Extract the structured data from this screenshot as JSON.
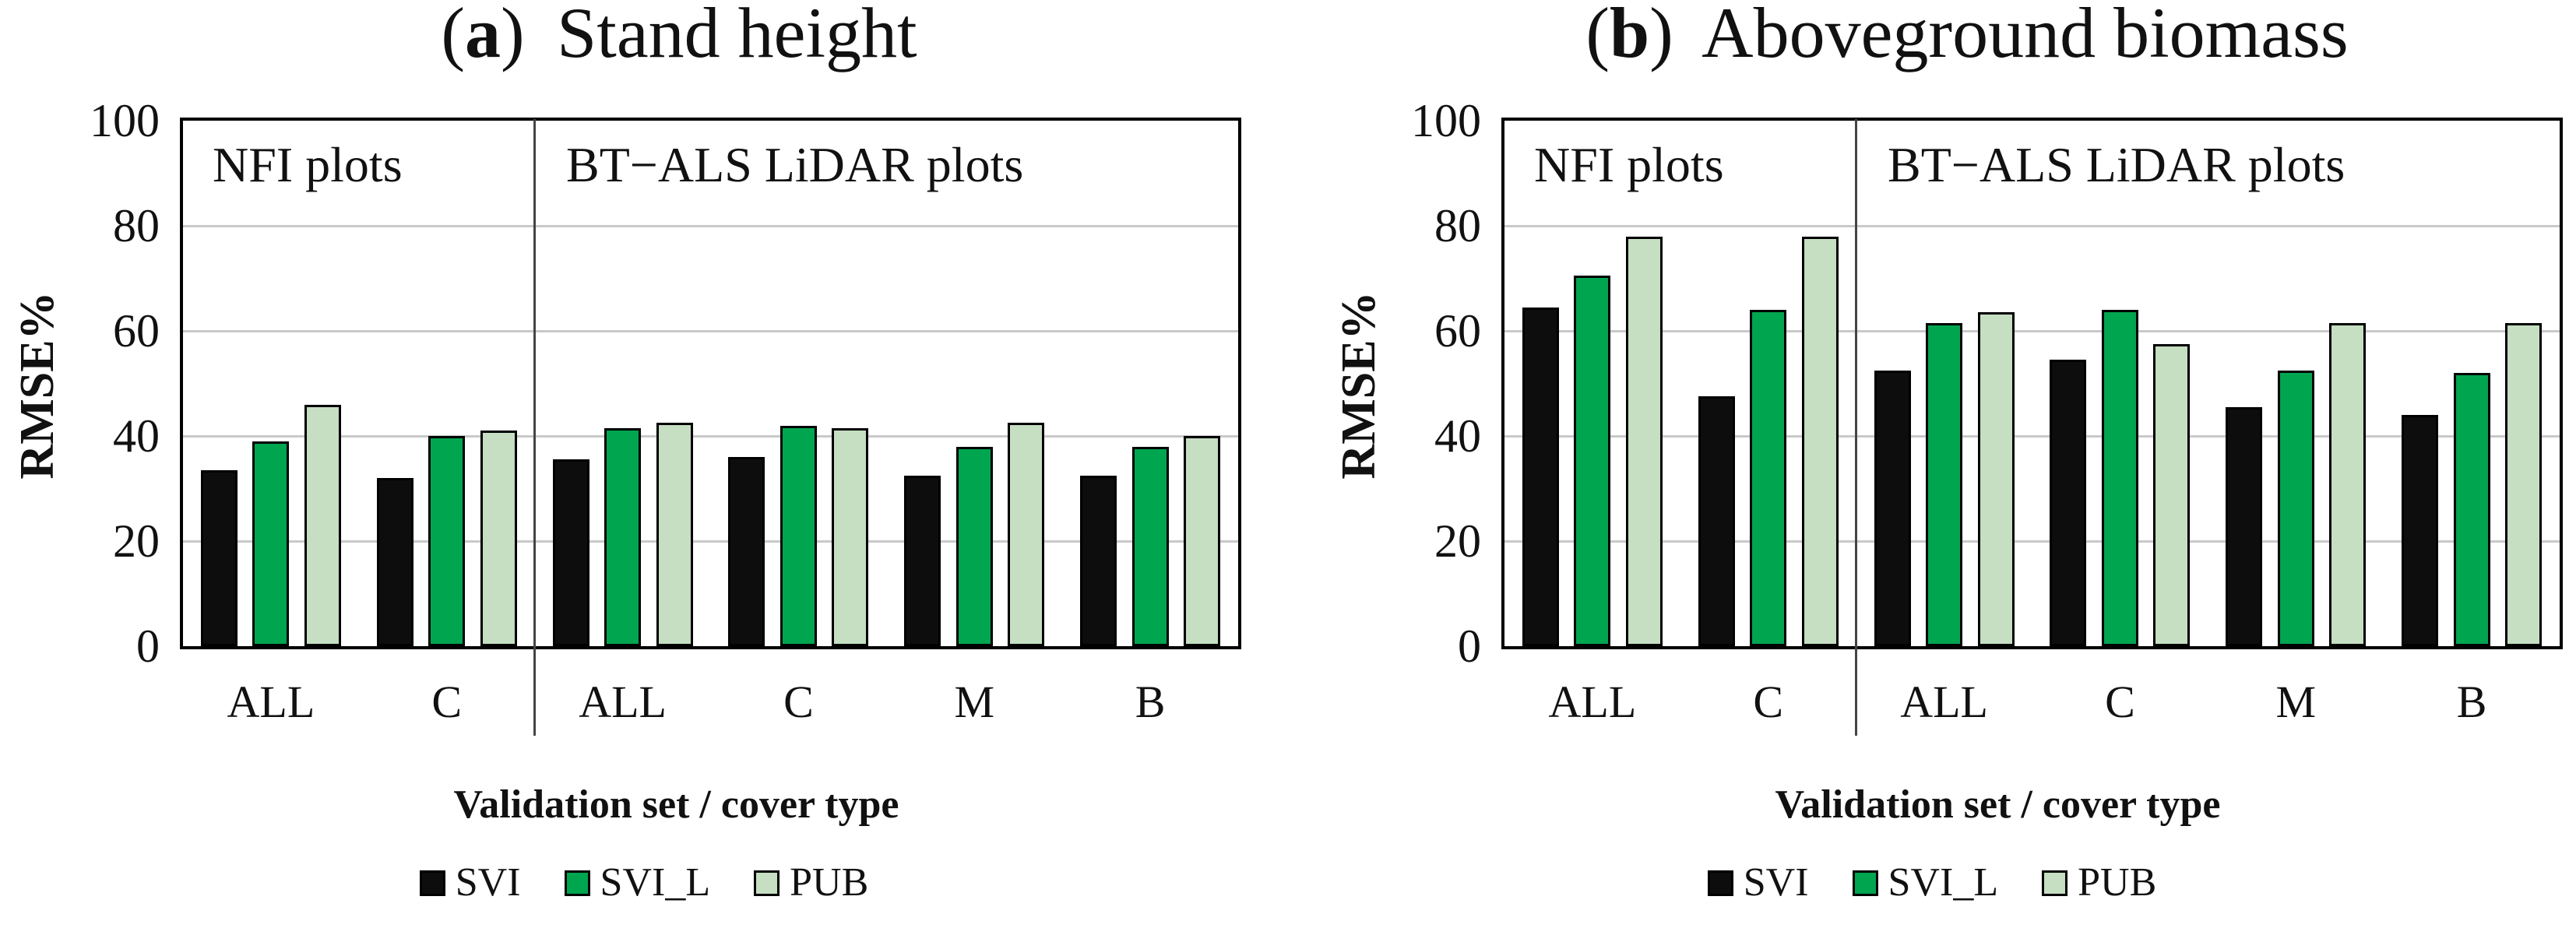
{
  "figure_caption_colors": {
    "grid": "#c9c9c9",
    "separator": "#454545",
    "axis": "#000000",
    "background": "#ffffff"
  },
  "chart_data": [
    {
      "type": "bar",
      "panel_label": "a",
      "title": "Stand height",
      "ylabel": "RMSE%",
      "xlabel": "Validation set / cover type",
      "ylim": [
        0,
        100
      ],
      "y_ticks": [
        0,
        20,
        40,
        60,
        80,
        100
      ],
      "grid": true,
      "legend_position": "bottom",
      "categories": [
        "ALL",
        "C",
        "ALL",
        "C",
        "M",
        "B"
      ],
      "sections": [
        {
          "label": "NFI plots",
          "categories": 2
        },
        {
          "label": "BT−ALS LiDAR plots",
          "categories": 4
        }
      ],
      "series": [
        {
          "name": "SVI",
          "color": "#0d0d0d",
          "values": [
            33.5,
            32,
            35.5,
            36,
            32.5,
            32.5
          ]
        },
        {
          "name": "SVI_L",
          "color": "#00a550",
          "values": [
            39,
            40,
            41.5,
            42,
            38,
            38
          ]
        },
        {
          "name": "PUB",
          "color": "#c6dec2",
          "values": [
            46,
            41,
            42.5,
            41.5,
            42.5,
            40
          ]
        }
      ]
    },
    {
      "type": "bar",
      "panel_label": "b",
      "title": "Aboveground biomass",
      "ylabel": "RMSE%",
      "xlabel": "Validation set / cover type",
      "ylim": [
        0,
        100
      ],
      "y_ticks": [
        0,
        20,
        40,
        60,
        80,
        100
      ],
      "grid": true,
      "legend_position": "bottom",
      "categories": [
        "ALL",
        "C",
        "ALL",
        "C",
        "M",
        "B"
      ],
      "sections": [
        {
          "label": "NFI plots",
          "categories": 2
        },
        {
          "label": "BT−ALS LiDAR plots",
          "categories": 4
        }
      ],
      "series": [
        {
          "name": "SVI",
          "color": "#0d0d0d",
          "values": [
            64.5,
            47.5,
            52.5,
            54.5,
            45.5,
            44
          ]
        },
        {
          "name": "SVI_L",
          "color": "#00a550",
          "values": [
            70.5,
            64,
            61.5,
            64,
            52.5,
            52
          ]
        },
        {
          "name": "PUB",
          "color": "#c6dec2",
          "values": [
            78,
            78,
            63.5,
            57.5,
            61.5,
            61.5
          ]
        }
      ]
    }
  ]
}
